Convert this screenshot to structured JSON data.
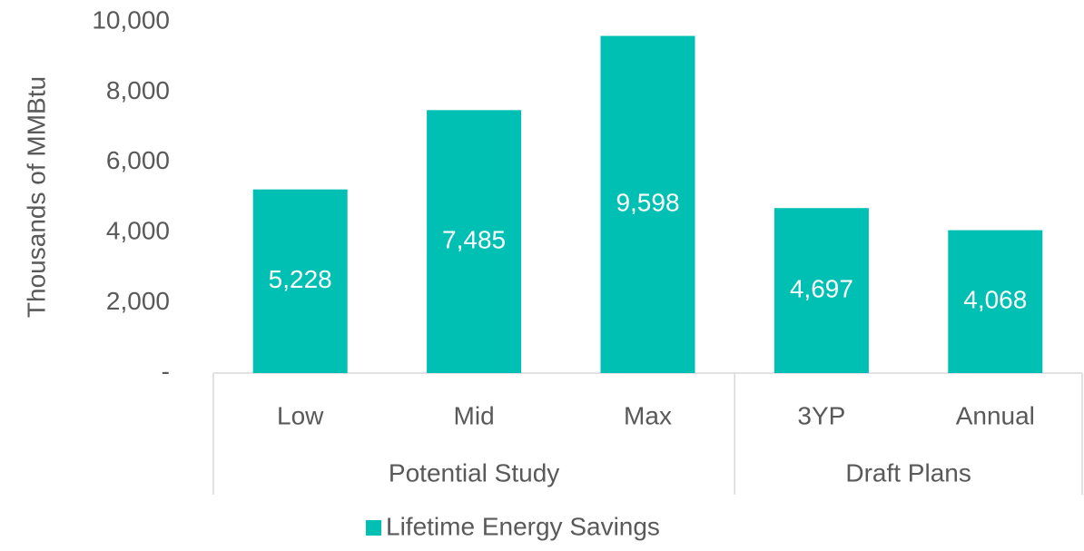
{
  "chart_data": {
    "type": "bar",
    "categories": [
      "Low",
      "Mid",
      "Max",
      "3YP",
      "Annual"
    ],
    "groups": [
      {
        "name": "Potential Study",
        "count": 3
      },
      {
        "name": "Draft Plans",
        "count": 2
      }
    ],
    "series": [
      {
        "name": "Lifetime Energy Savings",
        "color": "#00bfb3",
        "values": [
          5228,
          7485,
          9598,
          4697,
          4068
        ],
        "value_labels": [
          "5,228",
          "7,485",
          "9,598",
          "4,697",
          "4,068"
        ]
      }
    ],
    "ylabel": "Thousands of MMBtu",
    "ylim": [
      0,
      10000
    ],
    "yticks": [
      {
        "value": 0,
        "label": "-"
      },
      {
        "value": 2000,
        "label": "2,000"
      },
      {
        "value": 4000,
        "label": "4,000"
      },
      {
        "value": 6000,
        "label": "6,000"
      },
      {
        "value": 8000,
        "label": "8,000"
      },
      {
        "value": 10000,
        "label": "10,000"
      }
    ],
    "legend": "bottom"
  }
}
